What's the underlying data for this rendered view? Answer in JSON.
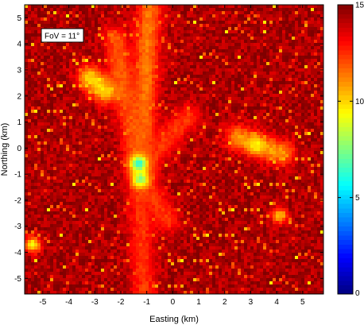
{
  "chart_data": {
    "type": "heatmap",
    "title": "",
    "xlabel": "Easting (km)",
    "ylabel": "Northing (km)",
    "xlim": [
      -5.7,
      5.8
    ],
    "ylim": [
      -5.6,
      5.5
    ],
    "xticks": [
      -5,
      -4,
      -3,
      -2,
      -1,
      0,
      1,
      2,
      3,
      4,
      5
    ],
    "xtick_labels": [
      "-5",
      "-4",
      "-3",
      "-2",
      "-1",
      "0",
      "1",
      "2",
      "3",
      "4",
      "5"
    ],
    "yticks": [
      5,
      4,
      3,
      2,
      1,
      0,
      -1,
      -2,
      -3,
      -4,
      -5
    ],
    "ytick_labels": [
      "5",
      "4",
      "3",
      "2",
      "1",
      "0",
      "-1",
      "-2",
      "-3",
      "-4",
      "-5"
    ],
    "colorbar": {
      "min": 0,
      "max": 15,
      "ticks": [
        0,
        5,
        10,
        15
      ],
      "tick_labels": [
        "0",
        "5",
        "10",
        "15"
      ],
      "colormap": "jet"
    },
    "annotation": "FoV = 11°",
    "grid": false,
    "features": [
      {
        "kind": "ridge",
        "from": [
          -1.2,
          -0.5
        ],
        "to": [
          -0.9,
          5.5
        ],
        "value": 11
      },
      {
        "kind": "ridge",
        "from": [
          -1.3,
          -0.5
        ],
        "to": [
          -2.2,
          4.2
        ],
        "value": 11.5
      },
      {
        "kind": "ridge",
        "from": [
          -1.0,
          -0.5
        ],
        "to": [
          0.6,
          1.2
        ],
        "value": 12
      },
      {
        "kind": "ridge",
        "from": [
          -2.6,
          2.2
        ],
        "to": [
          -3.2,
          2.7
        ],
        "value": 9.5
      },
      {
        "kind": "ridge",
        "from": [
          -1.3,
          -0.9
        ],
        "to": [
          -1.1,
          -5.5
        ],
        "value": 12
      },
      {
        "kind": "ridge",
        "from": [
          2.5,
          0.4
        ],
        "to": [
          4.2,
          -0.2
        ],
        "value": 10.5
      },
      {
        "kind": "ridge",
        "from": [
          -1.0,
          -1.5
        ],
        "to": [
          -0.2,
          -2.8
        ],
        "value": 12
      },
      {
        "kind": "spot",
        "at": [
          -1.3,
          -0.6
        ],
        "value": 5.5
      },
      {
        "kind": "spot",
        "at": [
          -1.25,
          -1.2
        ],
        "value": 7
      },
      {
        "kind": "spot",
        "at": [
          -5.4,
          -3.7
        ],
        "value": 9
      },
      {
        "kind": "spot",
        "at": [
          3.2,
          0.1
        ],
        "value": 9
      },
      {
        "kind": "spot",
        "at": [
          4.1,
          -2.6
        ],
        "value": 10
      }
    ]
  }
}
